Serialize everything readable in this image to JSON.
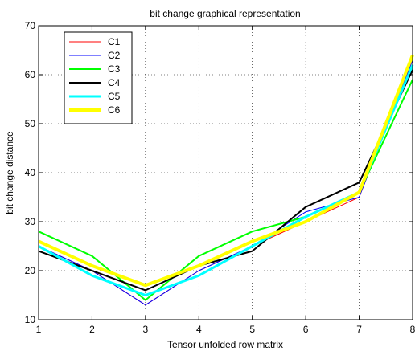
{
  "chart_data": {
    "type": "line",
    "title": "bit change graphical representation",
    "xlabel": "Tensor unfolded row matrix",
    "ylabel": "bit change distance",
    "xlim": [
      1,
      8
    ],
    "ylim": [
      10,
      70
    ],
    "x_ticks": [
      1,
      2,
      3,
      4,
      5,
      6,
      7,
      8
    ],
    "y_ticks": [
      10,
      20,
      30,
      40,
      50,
      60,
      70
    ],
    "grid": true,
    "legend_position": "top-left",
    "x": [
      1,
      2,
      3,
      4,
      5,
      6,
      7,
      8
    ],
    "series": [
      {
        "name": "C1",
        "color": "#ff0000",
        "line_width": 1,
        "values": [
          25,
          20,
          13,
          20,
          25,
          30,
          35,
          63
        ]
      },
      {
        "name": "C2",
        "color": "#0000ff",
        "line_width": 1,
        "values": [
          25,
          20,
          13,
          20,
          25,
          32,
          35,
          63
        ]
      },
      {
        "name": "C3",
        "color": "#00ff00",
        "line_width": 2,
        "values": [
          28,
          23,
          14,
          23,
          28,
          31,
          36,
          59
        ]
      },
      {
        "name": "C4",
        "color": "#000000",
        "line_width": 2,
        "values": [
          24,
          20,
          16,
          21,
          24,
          33,
          38,
          61
        ]
      },
      {
        "name": "C5",
        "color": "#00ffff",
        "line_width": 3,
        "values": [
          25,
          19,
          15,
          19,
          25,
          31,
          36,
          62
        ]
      },
      {
        "name": "C6",
        "color": "#ffff00",
        "line_width": 4,
        "values": [
          26,
          21,
          17,
          21,
          26,
          30,
          36,
          64
        ]
      }
    ]
  }
}
